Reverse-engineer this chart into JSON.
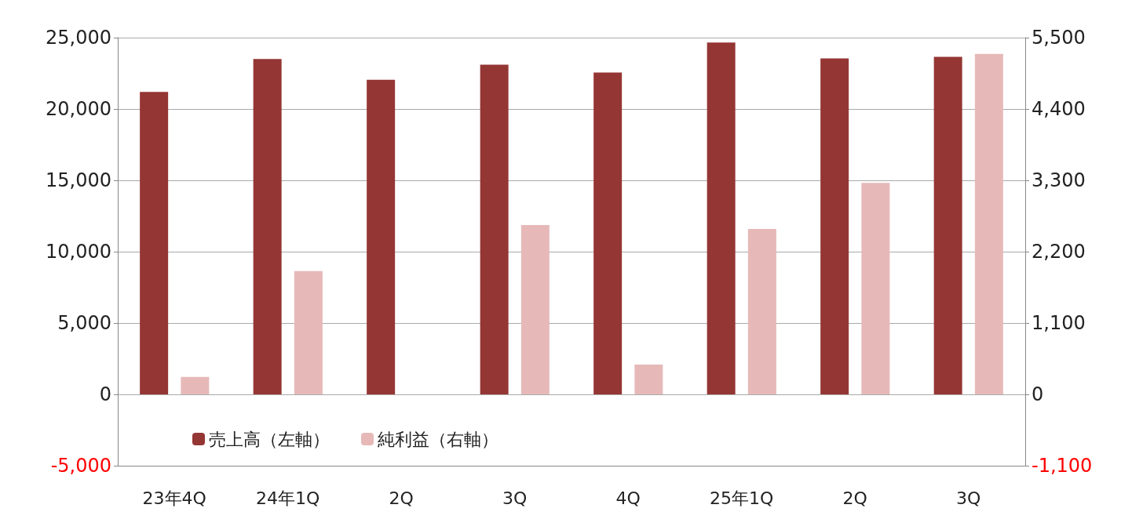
{
  "chart_data": {
    "type": "bar",
    "categories": [
      "23年4Q",
      "24年1Q",
      "2Q",
      "3Q",
      "4Q",
      "25年1Q",
      "2Q",
      "3Q"
    ],
    "series": [
      {
        "name": "売上高（左軸）",
        "color": "#943634",
        "values": [
          21200,
          23500,
          22050,
          23100,
          22550,
          24650,
          23550,
          23650
        ]
      },
      {
        "name": "純利益（右軸）",
        "color": "#e6b9b8",
        "axis": "y2",
        "values": [
          270,
          1900,
          0,
          2610,
          460,
          2550,
          3260,
          5250
        ]
      }
    ],
    "ylim": [
      -5000,
      25000
    ],
    "yticks": [
      {
        "value": -5000,
        "label": "-5,000"
      },
      0,
      {
        "value": 5000,
        "label": "5,000"
      },
      {
        "value": 10000,
        "label": "10,000"
      },
      {
        "value": 15000,
        "label": "15,000"
      },
      {
        "value": 20000,
        "label": "20,000"
      },
      {
        "value": 25000,
        "label": "25,000"
      }
    ],
    "y2lim": [
      -1100,
      5500
    ],
    "y2ticks": [
      {
        "value": -1100,
        "label": "-1,100"
      },
      0,
      {
        "value": 1100,
        "label": "1,100"
      },
      {
        "value": 2200,
        "label": "2,200"
      },
      {
        "value": 3300,
        "label": "3,300"
      },
      {
        "value": 4400,
        "label": "4,400"
      },
      {
        "value": 5500,
        "label": "5,500"
      }
    ],
    "grid": "y",
    "legend": "bottom left"
  }
}
